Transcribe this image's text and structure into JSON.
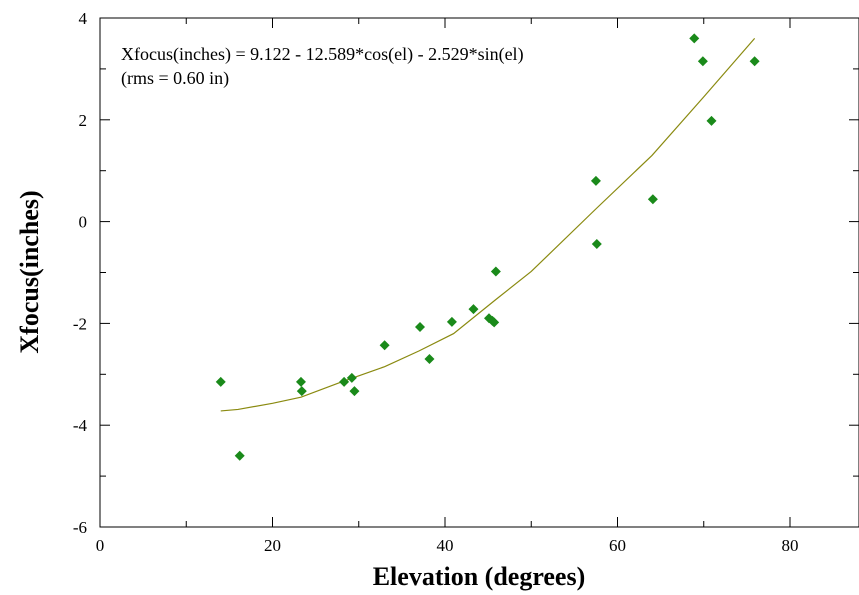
{
  "chart_data": {
    "type": "scatter",
    "title": "",
    "xlabel": "Elevation (degrees)",
    "ylabel": "Xfocus(inches)",
    "xlim": [
      0,
      88
    ],
    "ylim": [
      -6,
      4
    ],
    "x_ticks": [
      0,
      20,
      40,
      60,
      80
    ],
    "y_ticks": [
      -6,
      -4,
      -2,
      0,
      2,
      4
    ],
    "grid": false,
    "annotations": [
      "Xfocus(inches) = 9.122 - 12.589*cos(el) - 2.529*sin(el)",
      "(rms = 0.60 in)"
    ],
    "colors": {
      "points": "#1a8a1a",
      "fit": "#8a8a10"
    },
    "points": {
      "x": [
        14.0,
        16.2,
        23.3,
        23.4,
        28.3,
        29.2,
        29.5,
        33.0,
        37.1,
        38.2,
        40.8,
        43.3,
        45.1,
        45.5,
        45.7,
        45.9,
        57.5,
        57.6,
        64.1,
        68.9,
        69.9,
        70.9,
        75.9
      ],
      "y": [
        -3.15,
        -4.6,
        -3.15,
        -3.33,
        -3.15,
        -3.07,
        -3.33,
        -2.43,
        -2.07,
        -2.7,
        -1.97,
        -1.72,
        -1.9,
        -1.95,
        -1.98,
        -0.98,
        0.8,
        -0.44,
        0.44,
        3.6,
        3.15,
        1.98,
        3.15
      ]
    },
    "fit_curve": {
      "x": [
        14.0,
        16.0,
        20.0,
        23.3,
        28.0,
        33.0,
        37.0,
        41.0,
        45.9,
        50.0,
        57.5,
        64.0,
        70.0,
        75.9
      ],
      "y": [
        -3.72,
        -3.69,
        -3.57,
        -3.45,
        -3.15,
        -2.85,
        -2.54,
        -2.2,
        -1.53,
        -0.98,
        0.25,
        1.3,
        2.45,
        3.6
      ]
    }
  }
}
